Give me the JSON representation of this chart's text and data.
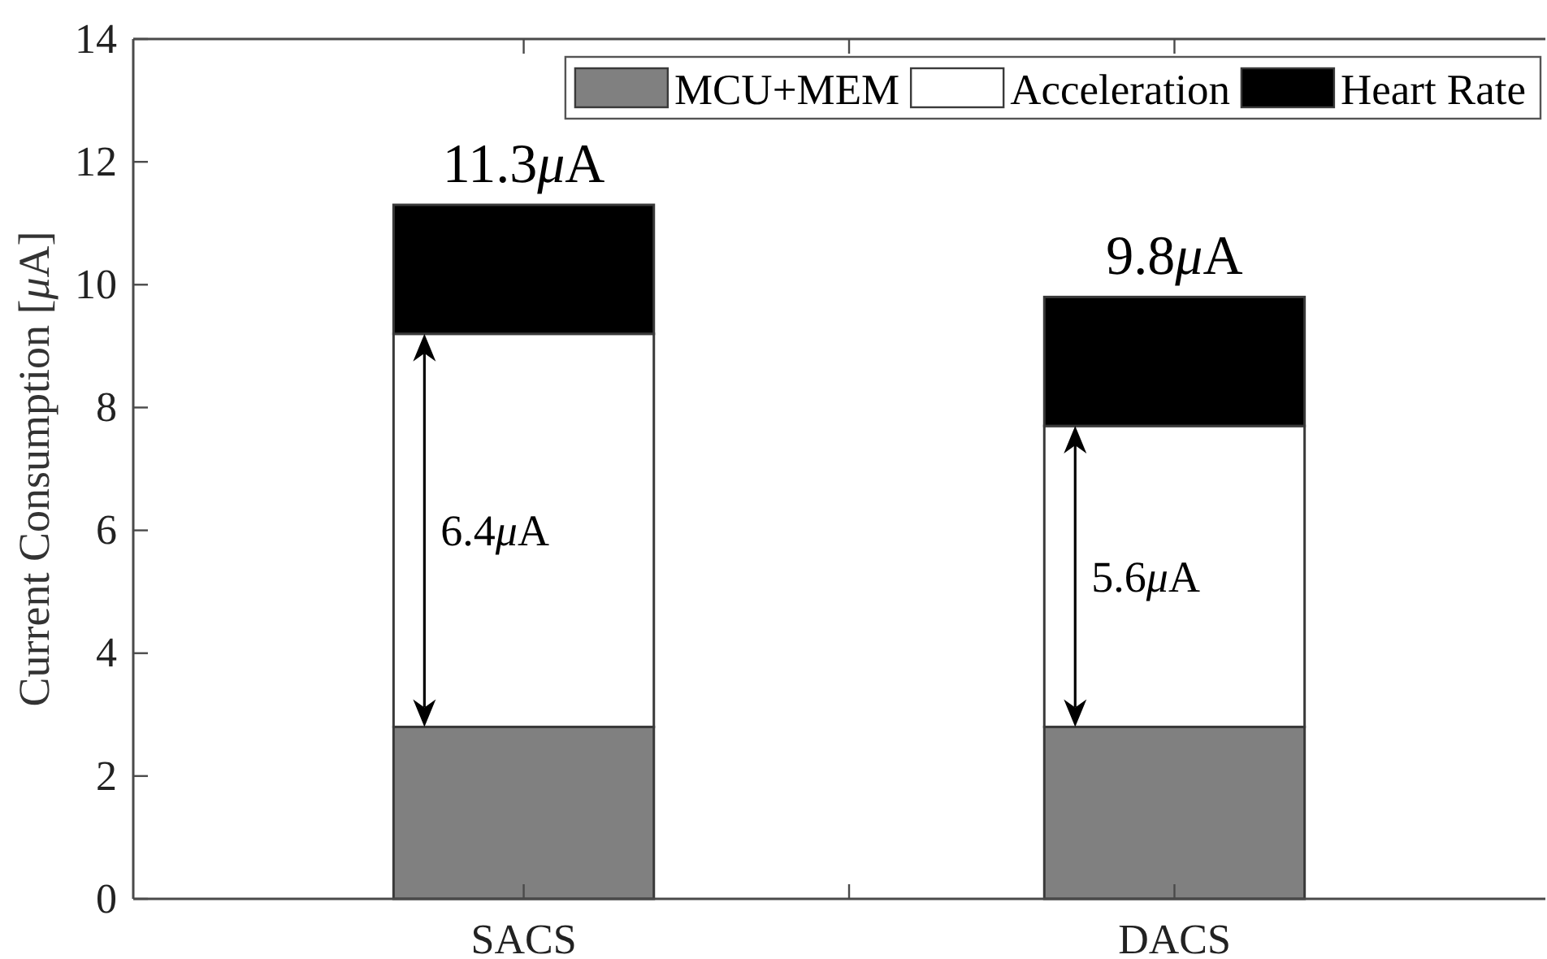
{
  "chart_data": {
    "type": "bar",
    "categories": [
      "SACS",
      "DACS"
    ],
    "ylabel": "Current Consumption [μA]",
    "ylim": [
      0,
      14
    ],
    "yticks": [
      0,
      2,
      4,
      6,
      8,
      10,
      12,
      14
    ],
    "stacked": true,
    "series": [
      {
        "name": "MCU+MEM",
        "color": "#808080",
        "values": [
          2.8,
          2.8
        ]
      },
      {
        "name": "Acceleration",
        "color": "#ffffff",
        "values": [
          6.4,
          4.9
        ]
      },
      {
        "name": "Heart Rate",
        "color": "#000000",
        "values": [
          2.1,
          2.1
        ]
      }
    ],
    "totals": [
      "11.3μA",
      "9.8μA"
    ],
    "annotations": [
      "6.4μA",
      "5.6μA"
    ],
    "legend": "top right",
    "grid": false
  }
}
